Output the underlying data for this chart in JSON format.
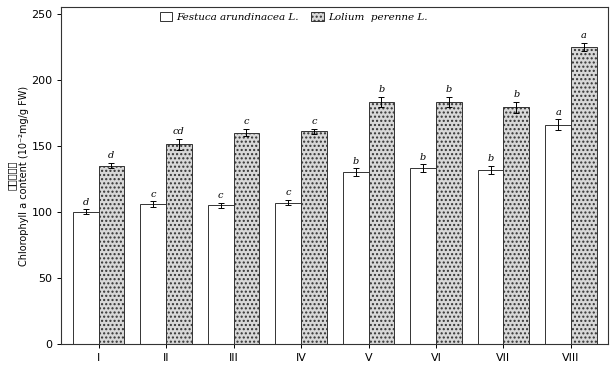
{
  "categories": [
    "I",
    "II",
    "III",
    "IV",
    "V",
    "VI",
    "VII",
    "VIII"
  ],
  "festuca_values": [
    100,
    106,
    105,
    107,
    130,
    133,
    132,
    166
  ],
  "lolium_values": [
    135,
    151,
    160,
    161,
    183,
    183,
    179,
    225
  ],
  "festuca_errors": [
    2,
    2,
    2,
    2,
    3,
    3,
    3,
    4
  ],
  "lolium_errors": [
    2,
    4,
    3,
    2,
    4,
    4,
    4,
    3
  ],
  "festuca_labels": [
    "d",
    "c",
    "c",
    "c",
    "b",
    "b",
    "b",
    "a"
  ],
  "lolium_labels": [
    "d",
    "cd",
    "c",
    "c",
    "b",
    "b",
    "b",
    "a"
  ],
  "legend_festuca": "Festuca arundinacea L.",
  "legend_lolium": "Lolium  perenne L.",
  "ylabel_line1": "叶綠素含量",
  "ylabel_line2": "Chlorophyll a content (10⁻²mg/g FW)",
  "ylim": [
    0,
    255
  ],
  "yticks": [
    0,
    50,
    100,
    150,
    200,
    250
  ],
  "bar_width": 0.38,
  "festuca_color": "#ffffff",
  "lolium_color": "#d8d8d8",
  "lolium_hatch": "....",
  "edge_color": "#333333",
  "label_fontsize": 7,
  "tick_fontsize": 8,
  "legend_fontsize": 7.5,
  "axis_linewidth": 0.8
}
